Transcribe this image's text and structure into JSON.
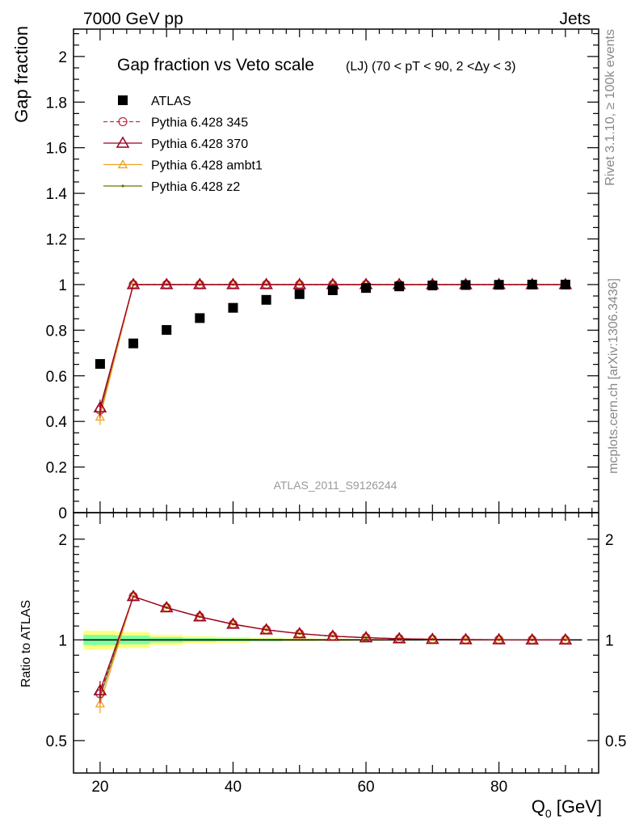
{
  "header": {
    "left": "7000 GeV pp",
    "right": "Jets"
  },
  "side_labels": {
    "top": "Rivet 3.1.10, ≥ 100k events",
    "bottom": "mcplots.cern.ch [arXiv:1306.3436]"
  },
  "colors": {
    "atlas": "#000000",
    "p345": "#c0304a",
    "p370": "#990022",
    "ambt1": "#f0a020",
    "z2": "#667700",
    "band_inner": "#7fffa0",
    "band_outer": "#ffff7f"
  },
  "chart_data": [
    {
      "type": "scatter",
      "title_main": "Gap fraction vs Veto scale",
      "title_sub": "(LJ) (70 < pT <  90, 2 <Δy < 3)",
      "ylabel": "Gap fraction",
      "watermark": "ATLAS_2011_S9126244",
      "ylim": [
        0,
        2.12
      ],
      "xlim": [
        16,
        95
      ],
      "yticks": [
        0,
        0.2,
        0.4,
        0.6,
        0.8,
        1,
        1.2,
        1.4,
        1.6,
        1.8,
        2
      ],
      "ytick_labels": [
        "0",
        "0.2",
        "0.4",
        "0.6",
        "0.8",
        "1",
        "1.2",
        "1.4",
        "1.6",
        "1.8",
        "2"
      ],
      "x": [
        20,
        25,
        30,
        35,
        40,
        45,
        50,
        55,
        60,
        65,
        70,
        75,
        80,
        85,
        90
      ],
      "legend": {
        "position": "top-left",
        "entries": [
          "ATLAS",
          "Pythia 6.428 345",
          "Pythia 6.428 370",
          "Pythia 6.428 ambt1",
          "Pythia 6.428 z2"
        ]
      },
      "series": [
        {
          "name": "ATLAS",
          "marker": "square",
          "values": [
            0.652,
            0.742,
            0.801,
            0.853,
            0.898,
            0.933,
            0.958,
            0.975,
            0.985,
            0.992,
            0.996,
            0.998,
            0.999,
            1.0,
            1.0
          ]
        },
        {
          "name": "Pythia 6.428 345",
          "marker": "circle",
          "values": [
            0.45,
            1.0,
            1.0,
            1.0,
            1.0,
            1.0,
            1.0,
            1.0,
            1.0,
            1.0,
            1.0,
            1.0,
            1.0,
            1.0,
            1.0
          ]
        },
        {
          "name": "Pythia 6.428 370",
          "marker": "triangle",
          "values": [
            0.46,
            1.0,
            1.0,
            1.0,
            1.0,
            1.0,
            1.0,
            1.0,
            1.0,
            1.0,
            1.0,
            1.0,
            1.0,
            1.0,
            1.0
          ]
        },
        {
          "name": "Pythia 6.428 ambt1",
          "marker": "triangle-small",
          "values": [
            0.42,
            1.0,
            1.0,
            1.0,
            1.0,
            1.0,
            1.0,
            1.0,
            1.0,
            1.0,
            1.0,
            1.0,
            1.0,
            1.0,
            1.0
          ]
        },
        {
          "name": "Pythia 6.428 z2",
          "marker": "dot",
          "values": [
            0.44,
            1.0,
            1.0,
            1.0,
            1.0,
            1.0,
            1.0,
            1.0,
            1.0,
            1.0,
            1.0,
            1.0,
            1.0,
            1.0,
            1.0
          ]
        }
      ]
    },
    {
      "type": "line",
      "ylabel": "Ratio to ATLAS",
      "xlabel": "Q",
      "xlabel_sub": "0",
      "xlabel_unit": " [GeV]",
      "ylim": [
        0.4,
        2.4
      ],
      "xlim": [
        16,
        95
      ],
      "yticks": [
        0.5,
        1,
        2
      ],
      "ytick_labels": [
        "0.5",
        "1",
        "2"
      ],
      "xticks": [
        20,
        40,
        60,
        80
      ],
      "xtick_labels": [
        "20",
        "40",
        "60",
        "80"
      ],
      "x": [
        20,
        25,
        30,
        35,
        40,
        45,
        50,
        55,
        60,
        65,
        70,
        75,
        80,
        85,
        90
      ],
      "band": {
        "x_edges": [
          17.5,
          22.5,
          27.5,
          32.5,
          37.5,
          42.5,
          47.5,
          52.5,
          57.5,
          62.5,
          67.5,
          72.5,
          77.5,
          82.5,
          87.5,
          92.5
        ],
        "outer": [
          0.065,
          0.055,
          0.035,
          0.025,
          0.02,
          0.015,
          0.01,
          0.008,
          0.006,
          0.005,
          0.004,
          0.003,
          0.003,
          0.003,
          0.003
        ],
        "inner": [
          0.035,
          0.03,
          0.018,
          0.012,
          0.01,
          0.008,
          0.005,
          0.004,
          0.003,
          0.003,
          0.002,
          0.002,
          0.002,
          0.002,
          0.002
        ]
      },
      "series": [
        {
          "name": "Pythia 6.428 345",
          "values": [
            0.69,
            1.348,
            1.248,
            1.172,
            1.114,
            1.072,
            1.044,
            1.026,
            1.015,
            1.008,
            1.004,
            1.002,
            1.001,
            1.0,
            1.0
          ]
        },
        {
          "name": "Pythia 6.428 370",
          "values": [
            0.705,
            1.348,
            1.248,
            1.172,
            1.114,
            1.072,
            1.044,
            1.026,
            1.015,
            1.008,
            1.004,
            1.002,
            1.001,
            1.0,
            1.0
          ]
        },
        {
          "name": "Pythia 6.428 ambt1",
          "values": [
            0.645,
            1.348,
            1.248,
            1.172,
            1.114,
            1.072,
            1.044,
            1.026,
            1.015,
            1.008,
            1.004,
            1.002,
            1.001,
            1.0,
            1.0
          ]
        },
        {
          "name": "Pythia 6.428 z2",
          "values": [
            0.675,
            1.348,
            1.248,
            1.172,
            1.114,
            1.072,
            1.044,
            1.026,
            1.015,
            1.008,
            1.004,
            1.002,
            1.001,
            1.0,
            1.0
          ]
        }
      ]
    }
  ]
}
